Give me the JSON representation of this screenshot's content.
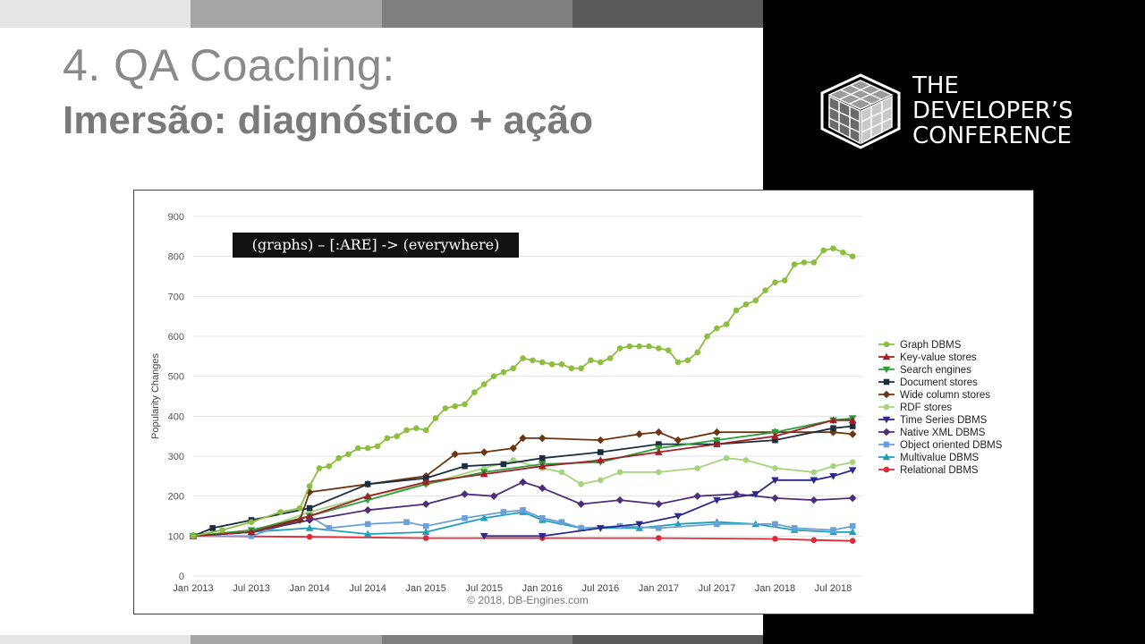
{
  "slide": {
    "title_line1": "4. QA Coaching:",
    "title_line2": "Imersão: diagnóstico + ação"
  },
  "logo": {
    "line1": "THE",
    "line2": "DEVELOPER’S",
    "line3": "CONFERENCE"
  },
  "colors": {
    "bar_shades": [
      "#e6e6e6",
      "#a6a6a6",
      "#7f7f7f",
      "#595959"
    ],
    "panel": "#000000"
  },
  "chart_data": {
    "type": "line",
    "annotation": "(graphs) – [:ARE] -> (everywhere)",
    "ylabel": "Popularity Changes",
    "xlabel": "",
    "credit": "© 2018, DB-Engines.com",
    "ylim": [
      0,
      900
    ],
    "yticks": [
      0,
      100,
      200,
      300,
      400,
      500,
      600,
      700,
      800,
      900
    ],
    "x_tick_labels": [
      "Jan 2013",
      "Jul 2013",
      "Jan 2014",
      "Jul 2014",
      "Jan 2015",
      "Jul 2015",
      "Jan 2016",
      "Jul 2016",
      "Jan 2017",
      "Jul 2017",
      "Jan 2018",
      "Jul 2018"
    ],
    "x_range_months": [
      0,
      69
    ],
    "grid": true,
    "legend_position": "right",
    "series": [
      {
        "name": "Graph DBMS",
        "color": "#8cbe3f",
        "marker": "circle",
        "points": [
          [
            0,
            100
          ],
          [
            3,
            115
          ],
          [
            6,
            135
          ],
          [
            9,
            160
          ],
          [
            11,
            170
          ],
          [
            12,
            225
          ],
          [
            13,
            270
          ],
          [
            14,
            275
          ],
          [
            15,
            295
          ],
          [
            16,
            305
          ],
          [
            17,
            320
          ],
          [
            18,
            320
          ],
          [
            19,
            325
          ],
          [
            20,
            345
          ],
          [
            21,
            350
          ],
          [
            22,
            365
          ],
          [
            23,
            370
          ],
          [
            24,
            365
          ],
          [
            25,
            395
          ],
          [
            26,
            420
          ],
          [
            27,
            425
          ],
          [
            28,
            430
          ],
          [
            29,
            460
          ],
          [
            30,
            480
          ],
          [
            31,
            500
          ],
          [
            32,
            510
          ],
          [
            33,
            520
          ],
          [
            34,
            545
          ],
          [
            35,
            540
          ],
          [
            36,
            535
          ],
          [
            37,
            530
          ],
          [
            38,
            530
          ],
          [
            39,
            520
          ],
          [
            40,
            520
          ],
          [
            41,
            540
          ],
          [
            42,
            535
          ],
          [
            43,
            545
          ],
          [
            44,
            570
          ],
          [
            45,
            575
          ],
          [
            46,
            575
          ],
          [
            47,
            575
          ],
          [
            48,
            570
          ],
          [
            49,
            565
          ],
          [
            50,
            535
          ],
          [
            51,
            540
          ],
          [
            52,
            560
          ],
          [
            53,
            600
          ],
          [
            54,
            620
          ],
          [
            55,
            630
          ],
          [
            56,
            665
          ],
          [
            57,
            680
          ],
          [
            58,
            690
          ],
          [
            59,
            715
          ],
          [
            60,
            735
          ],
          [
            61,
            740
          ],
          [
            62,
            780
          ],
          [
            63,
            785
          ],
          [
            64,
            785
          ],
          [
            65,
            815
          ],
          [
            66,
            820
          ],
          [
            67,
            810
          ],
          [
            68,
            800
          ]
        ]
      },
      {
        "name": "Key-value stores",
        "color": "#a01f28",
        "marker": "triangle-up",
        "points": [
          [
            0,
            100
          ],
          [
            6,
            110
          ],
          [
            12,
            150
          ],
          [
            18,
            200
          ],
          [
            24,
            235
          ],
          [
            30,
            255
          ],
          [
            36,
            275
          ],
          [
            42,
            290
          ],
          [
            48,
            310
          ],
          [
            54,
            330
          ],
          [
            60,
            350
          ],
          [
            66,
            390
          ],
          [
            68,
            390
          ]
        ]
      },
      {
        "name": "Search engines",
        "color": "#2e9e3a",
        "marker": "triangle-down",
        "points": [
          [
            0,
            100
          ],
          [
            6,
            115
          ],
          [
            12,
            150
          ],
          [
            18,
            190
          ],
          [
            24,
            230
          ],
          [
            30,
            260
          ],
          [
            36,
            280
          ],
          [
            42,
            285
          ],
          [
            48,
            320
          ],
          [
            54,
            340
          ],
          [
            60,
            360
          ],
          [
            66,
            390
          ],
          [
            68,
            395
          ]
        ]
      },
      {
        "name": "Document stores",
        "color": "#1a2e3e",
        "marker": "square",
        "points": [
          [
            0,
            100
          ],
          [
            2,
            120
          ],
          [
            6,
            140
          ],
          [
            12,
            170
          ],
          [
            18,
            230
          ],
          [
            24,
            245
          ],
          [
            28,
            275
          ],
          [
            32,
            280
          ],
          [
            36,
            295
          ],
          [
            42,
            310
          ],
          [
            48,
            330
          ],
          [
            54,
            330
          ],
          [
            60,
            340
          ],
          [
            66,
            370
          ],
          [
            68,
            375
          ]
        ]
      },
      {
        "name": "Wide column stores",
        "color": "#6b3612",
        "marker": "diamond",
        "points": [
          [
            0,
            100
          ],
          [
            6,
            110
          ],
          [
            11,
            140
          ],
          [
            12,
            210
          ],
          [
            18,
            230
          ],
          [
            24,
            250
          ],
          [
            27,
            305
          ],
          [
            30,
            310
          ],
          [
            33,
            320
          ],
          [
            34,
            345
          ],
          [
            36,
            345
          ],
          [
            42,
            340
          ],
          [
            46,
            355
          ],
          [
            48,
            360
          ],
          [
            50,
            340
          ],
          [
            54,
            360
          ],
          [
            60,
            360
          ],
          [
            66,
            360
          ],
          [
            68,
            355
          ]
        ]
      },
      {
        "name": "RDF stores",
        "color": "#a5d47c",
        "marker": "circle",
        "points": [
          [
            0,
            100
          ],
          [
            6,
            110
          ],
          [
            12,
            160
          ],
          [
            18,
            200
          ],
          [
            24,
            230
          ],
          [
            30,
            270
          ],
          [
            33,
            290
          ],
          [
            36,
            270
          ],
          [
            38,
            260
          ],
          [
            40,
            230
          ],
          [
            42,
            240
          ],
          [
            44,
            260
          ],
          [
            48,
            260
          ],
          [
            52,
            270
          ],
          [
            55,
            295
          ],
          [
            57,
            290
          ],
          [
            60,
            270
          ],
          [
            64,
            260
          ],
          [
            66,
            275
          ],
          [
            68,
            285
          ]
        ]
      },
      {
        "name": "Time Series DBMS",
        "color": "#2a2a8c",
        "marker": "triangle-down",
        "points": [
          [
            30,
            100
          ],
          [
            36,
            100
          ],
          [
            42,
            120
          ],
          [
            46,
            130
          ],
          [
            50,
            150
          ],
          [
            54,
            190
          ],
          [
            58,
            205
          ],
          [
            60,
            240
          ],
          [
            64,
            240
          ],
          [
            66,
            250
          ],
          [
            68,
            265
          ]
        ]
      },
      {
        "name": "Native XML DBMS",
        "color": "#4e2d7a",
        "marker": "diamond",
        "points": [
          [
            0,
            100
          ],
          [
            6,
            110
          ],
          [
            12,
            140
          ],
          [
            18,
            165
          ],
          [
            24,
            180
          ],
          [
            28,
            205
          ],
          [
            31,
            200
          ],
          [
            34,
            235
          ],
          [
            36,
            220
          ],
          [
            40,
            180
          ],
          [
            44,
            190
          ],
          [
            48,
            180
          ],
          [
            52,
            200
          ],
          [
            56,
            205
          ],
          [
            60,
            195
          ],
          [
            64,
            190
          ],
          [
            68,
            195
          ]
        ]
      },
      {
        "name": "Object oriented DBMS",
        "color": "#6aa0d8",
        "marker": "square",
        "points": [
          [
            0,
            100
          ],
          [
            6,
            100
          ],
          [
            12,
            150
          ],
          [
            14,
            120
          ],
          [
            18,
            130
          ],
          [
            22,
            135
          ],
          [
            24,
            125
          ],
          [
            28,
            145
          ],
          [
            32,
            160
          ],
          [
            34,
            165
          ],
          [
            36,
            145
          ],
          [
            38,
            135
          ],
          [
            40,
            120
          ],
          [
            44,
            125
          ],
          [
            48,
            120
          ],
          [
            54,
            130
          ],
          [
            60,
            130
          ],
          [
            62,
            120
          ],
          [
            66,
            115
          ],
          [
            68,
            125
          ]
        ]
      },
      {
        "name": "Multivalue DBMS",
        "color": "#1e9fb8",
        "marker": "triangle-up",
        "points": [
          [
            0,
            100
          ],
          [
            6,
            110
          ],
          [
            12,
            120
          ],
          [
            18,
            105
          ],
          [
            24,
            110
          ],
          [
            30,
            145
          ],
          [
            34,
            160
          ],
          [
            36,
            140
          ],
          [
            40,
            120
          ],
          [
            46,
            120
          ],
          [
            50,
            130
          ],
          [
            54,
            135
          ],
          [
            58,
            130
          ],
          [
            62,
            115
          ],
          [
            66,
            110
          ],
          [
            68,
            110
          ]
        ]
      },
      {
        "name": "Relational DBMS",
        "color": "#e02a3a",
        "marker": "circle",
        "points": [
          [
            0,
            100
          ],
          [
            12,
            98
          ],
          [
            24,
            95
          ],
          [
            36,
            95
          ],
          [
            48,
            95
          ],
          [
            60,
            93
          ],
          [
            64,
            90
          ],
          [
            68,
            88
          ]
        ]
      }
    ]
  }
}
